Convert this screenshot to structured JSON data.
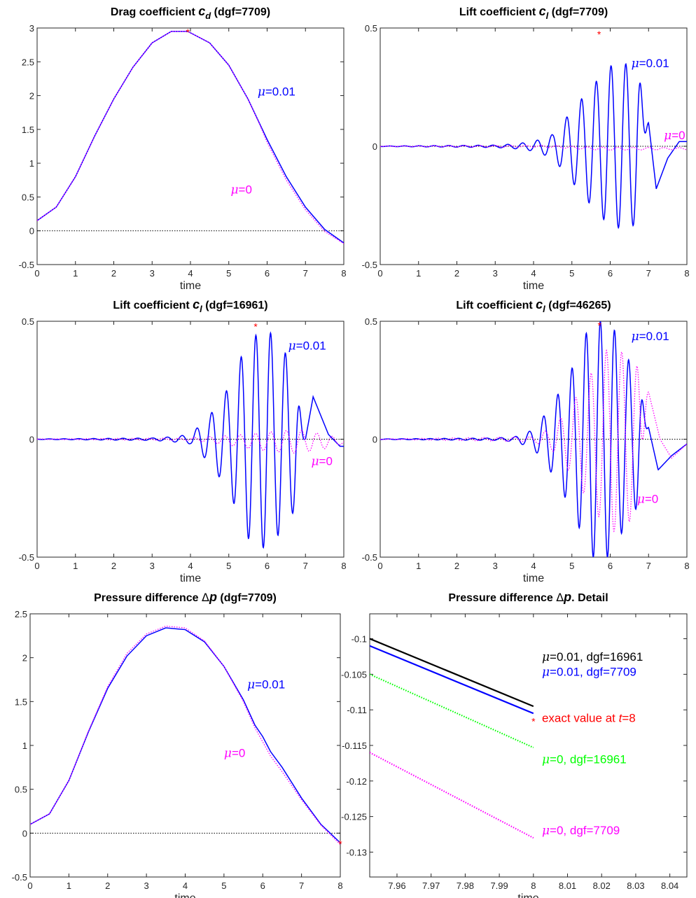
{
  "chart_data": [
    {
      "type": "line",
      "title": "Drag coefficient c_d (dgf=7709)",
      "title_parts": {
        "pre": "Drag coefficient ",
        "sym": "c",
        "sub": "d",
        "post": " (dgf=7709)"
      },
      "xlabel": "time",
      "xlim": [
        0,
        8
      ],
      "ylim": [
        -0.5,
        3
      ],
      "xticks": [
        "0",
        "1",
        "2",
        "3",
        "4",
        "5",
        "6",
        "7",
        "8"
      ],
      "yticks": [
        "-0.5",
        "0",
        "0.5",
        "1",
        "1.5",
        "2",
        "2.5",
        "3"
      ],
      "series": [
        {
          "name": "μ=0.01",
          "color": "#0000ff",
          "style": "solid",
          "x": [
            0,
            0.5,
            1,
            1.5,
            2,
            2.5,
            3,
            3.5,
            3.93,
            4.5,
            5,
            5.5,
            6,
            6.5,
            7,
            7.5,
            8
          ],
          "y": [
            0.15,
            0.35,
            0.8,
            1.4,
            1.95,
            2.42,
            2.78,
            2.95,
            2.95,
            2.78,
            2.45,
            1.95,
            1.35,
            0.8,
            0.35,
            0.02,
            -0.18
          ]
        },
        {
          "name": "μ=0",
          "color": "#ff00ff",
          "style": "dotted",
          "x": [
            0,
            0.5,
            1,
            1.5,
            2,
            2.5,
            3,
            3.5,
            3.93,
            4.5,
            5,
            5.5,
            5.8,
            6,
            6.5,
            7,
            7.5,
            8
          ],
          "y": [
            0.15,
            0.35,
            0.8,
            1.4,
            1.95,
            2.42,
            2.78,
            2.95,
            2.95,
            2.78,
            2.45,
            1.95,
            1.58,
            1.31,
            0.75,
            0.31,
            -0.01,
            -0.19
          ]
        }
      ],
      "marker": {
        "x": 3.93,
        "y": 2.95,
        "color": "#ff0000"
      },
      "annotations": [
        {
          "sym": "μ",
          "text": "=0.01",
          "color": "#0000ff",
          "x": 5.75,
          "y": 2.0
        },
        {
          "sym": "μ",
          "text": "=0",
          "color": "#ff00ff",
          "x": 5.05,
          "y": 0.55
        }
      ]
    },
    {
      "type": "line",
      "title": "Lift coefficient c_l (dgf=7709)",
      "title_parts": {
        "pre": "Lift coefficient ",
        "sym": "c",
        "sub": "l",
        "post": " (dgf=7709)"
      },
      "xlabel": "time",
      "xlim": [
        0,
        8
      ],
      "ylim": [
        -0.5,
        0.5
      ],
      "xticks": [
        "0",
        "1",
        "2",
        "3",
        "4",
        "5",
        "6",
        "7",
        "8"
      ],
      "yticks": [
        "-0.5",
        "0",
        "0.5"
      ],
      "series": [
        {
          "name": "μ=0.01",
          "color": "#0000ff",
          "style": "solid",
          "osc": {
            "ramp": [
              [
                0,
                0.001
              ],
              [
                3,
                0.005
              ],
              [
                3.5,
                0.01
              ],
              [
                4,
                0.02
              ],
              [
                4.5,
                0.05
              ],
              [
                5,
                0.15
              ],
              [
                5.5,
                0.25
              ],
              [
                6,
                0.34
              ],
              [
                6.5,
                0.35
              ],
              [
                6.9,
                0.29
              ]
            ],
            "T": 0.385,
            "phase": 0.15,
            "tailStart": 7.0,
            "tail": [
              [
                7.0,
                0.1
              ],
              [
                7.2,
                -0.18
              ],
              [
                7.5,
                -0.05
              ],
              [
                7.8,
                0.02
              ],
              [
                8.0,
                0.02
              ]
            ]
          }
        },
        {
          "name": "μ=0",
          "color": "#ff00ff",
          "style": "dotted",
          "osc": {
            "ramp": [
              [
                0,
                0.001
              ],
              [
                4,
                0.004
              ],
              [
                6,
                0.006
              ],
              [
                8,
                0.004
              ]
            ],
            "T": 0.4,
            "phase": 0.1,
            "offset": -0.01
          }
        }
      ],
      "marker": {
        "x": 5.71,
        "y": 0.477,
        "color": "#ff0000"
      },
      "annotations": [
        {
          "sym": "μ",
          "text": "=0.01",
          "color": "#0000ff",
          "x": 6.55,
          "y": 0.335
        },
        {
          "sym": "μ",
          "text": "=0",
          "color": "#ff00ff",
          "x": 7.4,
          "y": 0.03
        }
      ]
    },
    {
      "type": "line",
      "title": "Lift coefficient c_l (dgf=16961)",
      "title_parts": {
        "pre": "Lift coefficient ",
        "sym": "c",
        "sub": "l",
        "post": " (dgf=16961)"
      },
      "xlabel": "time",
      "xlim": [
        0,
        8
      ],
      "ylim": [
        -0.5,
        0.5
      ],
      "xticks": [
        "0",
        "1",
        "2",
        "3",
        "4",
        "5",
        "6",
        "7",
        "8"
      ],
      "yticks": [
        "-0.5",
        "0",
        "0.5"
      ],
      "series": [
        {
          "name": "μ=0.01",
          "color": "#0000ff",
          "style": "solid",
          "osc": {
            "ramp": [
              [
                0,
                0.001
              ],
              [
                3,
                0.005
              ],
              [
                3.5,
                0.01
              ],
              [
                4,
                0.02
              ],
              [
                4.5,
                0.1
              ],
              [
                5,
                0.22
              ],
              [
                5.5,
                0.42
              ],
              [
                6,
                0.47
              ],
              [
                6.5,
                0.36
              ],
              [
                6.9,
                0.25
              ]
            ],
            "T": 0.385,
            "phase": 0.22,
            "tailStart": 7.0,
            "tail": [
              [
                7.0,
                0.0
              ],
              [
                7.2,
                0.18
              ],
              [
                7.6,
                0.02
              ],
              [
                7.9,
                -0.03
              ],
              [
                8.0,
                -0.03
              ]
            ]
          }
        },
        {
          "name": "μ=0",
          "color": "#ff00ff",
          "style": "dotted",
          "osc": {
            "ramp": [
              [
                0,
                0.001
              ],
              [
                4,
                0.005
              ],
              [
                5,
                0.02
              ],
              [
                6,
                0.04
              ],
              [
                6.8,
                0.05
              ],
              [
                7.5,
                0.03
              ],
              [
                8,
                0.01
              ]
            ],
            "T": 0.4,
            "phase": 0.0,
            "offset": -0.01
          }
        }
      ],
      "marker": {
        "x": 5.7,
        "y": 0.48,
        "color": "#ff0000"
      },
      "annotations": [
        {
          "sym": "μ",
          "text": "=0.01",
          "color": "#0000ff",
          "x": 6.55,
          "y": 0.38
        },
        {
          "sym": "μ",
          "text": "=0",
          "color": "#ff00ff",
          "x": 7.15,
          "y": -0.11
        }
      ]
    },
    {
      "type": "line",
      "title": "Lift coefficient c_l (dgf=46265)",
      "title_parts": {
        "pre": "Lift coefficient ",
        "sym": "c",
        "sub": "l",
        "post": " (dgf=46265)"
      },
      "xlabel": "time",
      "xlim": [
        0,
        8
      ],
      "ylim": [
        -0.5,
        0.5
      ],
      "xticks": [
        "0",
        "1",
        "2",
        "3",
        "4",
        "5",
        "6",
        "7",
        "8"
      ],
      "yticks": [
        "-0.5",
        "0",
        "0.5"
      ],
      "series": [
        {
          "name": "μ=0.01",
          "color": "#0000ff",
          "style": "solid",
          "osc": {
            "ramp": [
              [
                0,
                0.001
              ],
              [
                3,
                0.005
              ],
              [
                3.5,
                0.01
              ],
              [
                4,
                0.04
              ],
              [
                4.5,
                0.15
              ],
              [
                5,
                0.3
              ],
              [
                5.5,
                0.5
              ],
              [
                6,
                0.5
              ],
              [
                6.5,
                0.33
              ],
              [
                6.9,
                0.25
              ]
            ],
            "T": 0.37,
            "phase": 0.1,
            "tailStart": 7.0,
            "tail": [
              [
                7.0,
                0.05
              ],
              [
                7.25,
                -0.13
              ],
              [
                7.6,
                -0.07
              ],
              [
                8.0,
                -0.02
              ]
            ]
          }
        },
        {
          "name": "μ=0",
          "color": "#ff00ff",
          "style": "dotted",
          "osc": {
            "ramp": [
              [
                0,
                0.001
              ],
              [
                4,
                0.01
              ],
              [
                4.5,
                0.05
              ],
              [
                5,
                0.15
              ],
              [
                5.5,
                0.28
              ],
              [
                6,
                0.4
              ],
              [
                6.5,
                0.35
              ],
              [
                7,
                0.25
              ]
            ],
            "T": 0.4,
            "phase": 0.2,
            "tailStart": 7.0,
            "tail": [
              [
                7.0,
                0.2
              ],
              [
                7.3,
                0.0
              ],
              [
                7.6,
                -0.08
              ],
              [
                8.0,
                -0.02
              ]
            ]
          }
        }
      ],
      "marker": {
        "x": 5.72,
        "y": 0.485,
        "color": "#ff0000"
      },
      "annotations": [
        {
          "sym": "μ",
          "text": "=0.01",
          "color": "#0000ff",
          "x": 6.55,
          "y": 0.42
        },
        {
          "sym": "μ",
          "text": "=0",
          "color": "#ff00ff",
          "x": 6.7,
          "y": -0.27
        }
      ]
    },
    {
      "type": "line",
      "title": "Pressure difference Δp (dgf=7709)",
      "title_parts": {
        "pre": "Pressure difference ",
        "sym": "Δ",
        "sub": "",
        "it": "p",
        "post": " (dgf=7709)"
      },
      "xlabel": "time",
      "xlim": [
        0,
        8
      ],
      "ylim": [
        -0.5,
        2.5
      ],
      "xticks": [
        "0",
        "1",
        "2",
        "3",
        "4",
        "5",
        "6",
        "7",
        "8"
      ],
      "yticks": [
        "-0.5",
        "0",
        "0.5",
        "1",
        "1.5",
        "2",
        "2.5"
      ],
      "series": [
        {
          "name": "μ=0.01",
          "color": "#0000ff",
          "style": "solid",
          "x": [
            0,
            0.5,
            1,
            1.5,
            2,
            2.5,
            3,
            3.5,
            4,
            4.5,
            5,
            5.5,
            5.8,
            6,
            6.2,
            6.5,
            7,
            7.5,
            8
          ],
          "y": [
            0.1,
            0.22,
            0.6,
            1.15,
            1.65,
            2.02,
            2.25,
            2.34,
            2.32,
            2.18,
            1.9,
            1.52,
            1.23,
            1.1,
            0.93,
            0.75,
            0.4,
            0.1,
            -0.11
          ]
        },
        {
          "name": "μ=0",
          "color": "#ff00ff",
          "style": "dotted",
          "x": [
            0,
            0.5,
            1,
            1.5,
            2,
            2.5,
            3,
            3.5,
            4,
            4.5,
            5,
            5.5,
            5.8,
            6,
            6.2,
            6.5,
            7,
            7.5,
            8
          ],
          "y": [
            0.1,
            0.22,
            0.6,
            1.16,
            1.67,
            2.05,
            2.27,
            2.36,
            2.34,
            2.19,
            1.9,
            1.5,
            1.2,
            1.04,
            0.88,
            0.7,
            0.38,
            0.09,
            -0.13
          ]
        }
      ],
      "marker": {
        "x": 8,
        "y": -0.113,
        "color": "#ff0000"
      },
      "annotations": [
        {
          "sym": "μ",
          "text": "=0.01",
          "color": "#0000ff",
          "x": 5.6,
          "y": 1.65
        },
        {
          "sym": "μ",
          "text": "=0",
          "color": "#ff00ff",
          "x": 5.0,
          "y": 0.87
        }
      ]
    },
    {
      "type": "line",
      "title": "Pressure difference Δp. Detail",
      "title_parts": {
        "pre": "Pressure difference ",
        "sym": "Δ",
        "sub": "",
        "it": "p",
        "post": ". Detail"
      },
      "xlabel": "time",
      "xlim": [
        7.952,
        8.045
      ],
      "ylim": [
        -0.1335,
        -0.0965
      ],
      "xticks": [
        "7.96",
        "7.97",
        "7.98",
        "7.99",
        "8",
        "8.01",
        "8.02",
        "8.03",
        "8.04"
      ],
      "yticks": [
        "-0.13",
        "-0.125",
        "-0.12",
        "-0.115",
        "-0.11",
        "-0.105",
        "-0.1"
      ],
      "ytick_values": [
        -0.13,
        -0.125,
        -0.12,
        -0.115,
        -0.11,
        -0.105,
        -0.1
      ],
      "xtick_values": [
        7.96,
        7.97,
        7.98,
        7.99,
        8.0,
        8.01,
        8.02,
        8.03,
        8.04
      ],
      "series": [
        {
          "name": "μ=0.01, dgf=16961",
          "color": "#000000",
          "style": "solid",
          "x": [
            7.952,
            8.0
          ],
          "y": [
            -0.1,
            -0.1095
          ]
        },
        {
          "name": "μ=0.01, dgf=7709",
          "color": "#0000ff",
          "style": "solid",
          "x": [
            7.952,
            8.0
          ],
          "y": [
            -0.101,
            -0.1105
          ]
        },
        {
          "name": "μ=0, dgf=16961",
          "color": "#00ff00",
          "style": "dotted",
          "x": [
            7.952,
            8.0
          ],
          "y": [
            -0.105,
            -0.1153
          ]
        },
        {
          "name": "μ=0, dgf=7709",
          "color": "#ff00ff",
          "style": "dotted",
          "x": [
            7.952,
            8.0
          ],
          "y": [
            -0.116,
            -0.128
          ]
        }
      ],
      "marker": {
        "x": 8.0,
        "y": -0.1115,
        "color": "#ff0000"
      },
      "legend_texts": [
        {
          "sym": "μ",
          "text": "=0.01, dgf=16961",
          "color": "#000000",
          "x": 8.0025,
          "y": -0.1031
        },
        {
          "sym": "μ",
          "text": "=0.01, dgf=7709",
          "color": "#0000ff",
          "x": 8.0025,
          "y": -0.1052
        },
        {
          "text": "exact value at ",
          "it": "t",
          "post": "=8",
          "color": "#ff0000",
          "x": 8.0025,
          "y": -0.1117
        },
        {
          "sym": "μ",
          "text": "=0,    dgf=16961",
          "color": "#00ff00",
          "x": 8.0025,
          "y": -0.1175
        },
        {
          "sym": "μ",
          "text": "=0,    dgf=7709",
          "color": "#ff00ff",
          "x": 8.0025,
          "y": -0.1275
        }
      ]
    }
  ]
}
